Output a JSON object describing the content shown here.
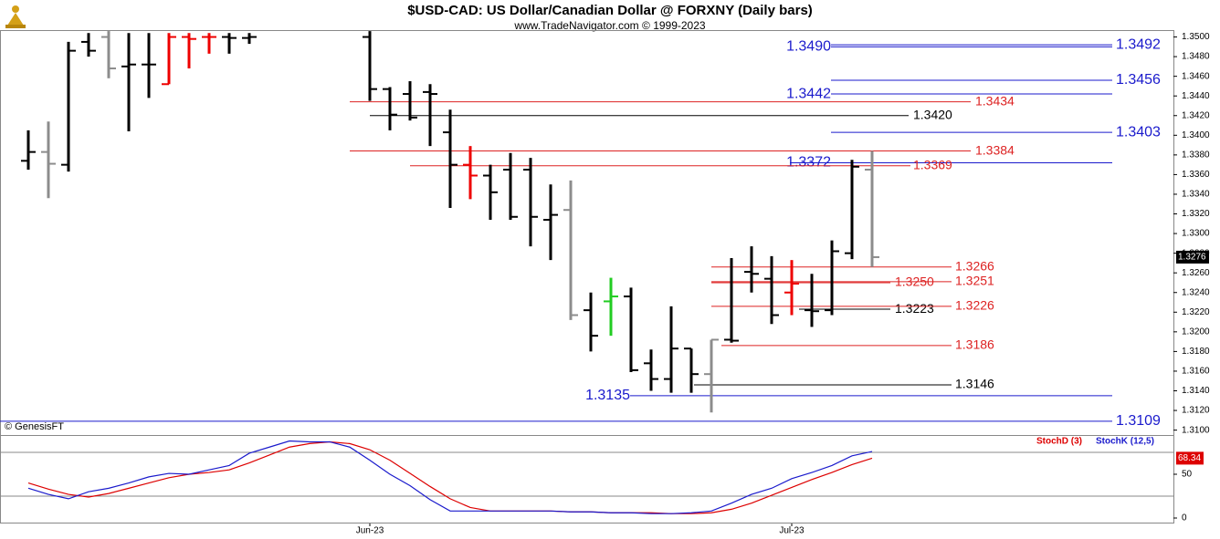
{
  "chart_data": [
    {
      "type": "ohlc",
      "title": "$USD-CAD:  US Dollar/Canadian Dollar @ FORXNY  (Daily bars)",
      "subtitle": "www.TradeNavigator.com © 1999-2023",
      "source": "© GenesisFT",
      "ylim": [
        1.3095,
        1.3507
      ],
      "yticks": [
        {
          "value": 1.31,
          "label": "1.3100"
        },
        {
          "value": 1.312,
          "label": "1.3120"
        },
        {
          "value": 1.314,
          "label": "1.3140"
        },
        {
          "value": 1.316,
          "label": "1.3160"
        },
        {
          "value": 1.318,
          "label": "1.3180"
        },
        {
          "value": 1.32,
          "label": "1.3200"
        },
        {
          "value": 1.322,
          "label": "1.3220"
        },
        {
          "value": 1.324,
          "label": "1.3240"
        },
        {
          "value": 1.326,
          "label": "1.3260"
        },
        {
          "value": 1.328,
          "label": "1.3280"
        },
        {
          "value": 1.33,
          "label": "1.3300"
        },
        {
          "value": 1.332,
          "label": "1.3320"
        },
        {
          "value": 1.334,
          "label": "1.3340"
        },
        {
          "value": 1.336,
          "label": "1.3360"
        },
        {
          "value": 1.338,
          "label": "1.3380"
        },
        {
          "value": 1.34,
          "label": "1.3400"
        },
        {
          "value": 1.342,
          "label": "1.3420"
        },
        {
          "value": 1.344,
          "label": "1.3440"
        },
        {
          "value": 1.346,
          "label": "1.3460"
        },
        {
          "value": 1.348,
          "label": "1.3480"
        },
        {
          "value": 1.35,
          "label": "1.3500"
        }
      ],
      "open": [
        1.3374,
        1.3383,
        1.337,
        1.3495,
        1.35,
        1.347,
        1.3472,
        1.3452,
        1.35,
        1.35,
        1.35,
        1.3499,
        null,
        null,
        null,
        null,
        null,
        1.35,
        1.3447,
        1.3442,
        1.3444,
        1.3403,
        1.337,
        1.3359,
        1.3365,
        1.3365,
        1.3314,
        1.3324,
        1.3222,
        1.3231,
        1.3236,
        1.3168,
        1.3152,
        1.3183,
        1.3157,
        1.3192,
        1.3261,
        1.3254,
        1.324,
        1.3222,
        1.3222,
        1.328,
        1.3365
      ],
      "high": [
        1.3405,
        1.3414,
        1.3495,
        1.3504,
        1.3506,
        1.3504,
        1.3504,
        1.3504,
        1.3504,
        1.3504,
        1.3504,
        1.3504,
        null,
        null,
        null,
        null,
        null,
        1.3506,
        1.3449,
        1.3455,
        1.3452,
        1.3426,
        1.3389,
        1.337,
        1.3382,
        1.3377,
        1.335,
        1.3354,
        1.324,
        1.3255,
        1.3245,
        1.3182,
        1.3226,
        1.3183,
        1.3192,
        1.3275,
        1.3287,
        1.3277,
        1.3273,
        1.3259,
        1.3293,
        1.3375,
        1.3384
      ],
      "low": [
        1.3365,
        1.3336,
        1.3363,
        1.348,
        1.3458,
        1.3404,
        1.3438,
        1.3452,
        1.3468,
        1.3483,
        1.3483,
        1.3493,
        null,
        null,
        null,
        null,
        null,
        1.3435,
        1.3405,
        1.3415,
        1.3389,
        1.3326,
        1.3335,
        1.3314,
        1.3314,
        1.3287,
        1.3273,
        1.3212,
        1.318,
        1.3196,
        1.3159,
        1.314,
        1.3138,
        1.3138,
        1.3118,
        1.3189,
        1.324,
        1.3208,
        1.3217,
        1.3205,
        1.3217,
        1.3274,
        1.3266
      ],
      "close": [
        1.3383,
        1.3371,
        1.3486,
        1.3486,
        1.3468,
        1.3472,
        1.3472,
        1.35,
        1.3498,
        1.35,
        1.3499,
        1.35,
        null,
        null,
        null,
        null,
        null,
        1.3447,
        1.3421,
        1.3418,
        1.3442,
        1.337,
        1.3359,
        1.3342,
        1.3317,
        1.3317,
        1.3319,
        1.3217,
        1.3196,
        1.3236,
        1.3161,
        1.3152,
        1.3183,
        1.3157,
        1.3192,
        1.3191,
        1.3259,
        1.3217,
        1.3249,
        1.3221,
        1.3282,
        1.3368,
        1.3276
      ],
      "colors": [
        "#000000",
        "#8c8c8c",
        "#000000",
        "#000000",
        "#8c8c8c",
        "#000000",
        "#000000",
        "#ee0000",
        "#ee0000",
        "#ee0000",
        "#000000",
        "#000000",
        null,
        null,
        null,
        null,
        null,
        "#000000",
        "#000000",
        "#000000",
        "#000000",
        "#000000",
        "#ee0000",
        "#000000",
        "#000000",
        "#000000",
        "#000000",
        "#8c8c8c",
        "#000000",
        "#22cc22",
        "#000000",
        "#000000",
        "#000000",
        "#000000",
        "#8c8c8c",
        "#000000",
        "#000000",
        "#000000",
        "#ee0000",
        "#000000",
        "#000000",
        "#000000",
        "#8c8c8c"
      ],
      "last_price": 1.3276,
      "levels": [
        {
          "value": 1.349,
          "label": "1.3490",
          "color": "#1a1acc"
        },
        {
          "value": 1.3492,
          "label": "1.3492",
          "color": "#1a1acc"
        },
        {
          "value": 1.3456,
          "label": "1.3456",
          "color": "#1a1acc"
        },
        {
          "value": 1.3442,
          "label": "1.3442",
          "color": "#1a1acc"
        },
        {
          "value": 1.3434,
          "label": "1.3434",
          "color": "#dd2222"
        },
        {
          "value": 1.342,
          "label": "1.3420",
          "color": "#000000"
        },
        {
          "value": 1.3403,
          "label": "1.3403",
          "color": "#1a1acc"
        },
        {
          "value": 1.3384,
          "label": "1.3384",
          "color": "#dd2222"
        },
        {
          "value": 1.3372,
          "label": "1.3372",
          "color": "#1a1acc"
        },
        {
          "value": 1.3369,
          "label": "1.3369",
          "color": "#dd2222"
        },
        {
          "value": 1.3266,
          "label": "1.3266",
          "color": "#dd2222"
        },
        {
          "value": 1.325,
          "label": "1.3250",
          "color": "#dd2222"
        },
        {
          "value": 1.3251,
          "label": "1.3251",
          "color": "#dd2222"
        },
        {
          "value": 1.3223,
          "label": "1.3223",
          "color": "#000000"
        },
        {
          "value": 1.3226,
          "label": "1.3226",
          "color": "#dd2222"
        },
        {
          "value": 1.3186,
          "label": "1.3186",
          "color": "#dd2222"
        },
        {
          "value": 1.3146,
          "label": "1.3146",
          "color": "#000000"
        },
        {
          "value": 1.3135,
          "label": "1.3135",
          "color": "#1a1acc"
        },
        {
          "value": 1.3109,
          "label": "1.3109",
          "color": "#1a1acc"
        }
      ]
    },
    {
      "type": "line",
      "ylim": [
        0,
        100
      ],
      "yticks": [
        0,
        50
      ],
      "bands": [
        75,
        25
      ],
      "xticks": [
        {
          "value": 17,
          "label": "Jun-23"
        },
        {
          "value": 38,
          "label": "Jul-23"
        }
      ],
      "series": [
        {
          "name": "StochD (3)",
          "color": "#dd0000",
          "values": [
            40,
            33,
            27,
            24,
            28,
            34,
            40,
            46,
            50,
            52,
            55,
            63,
            72,
            81,
            85,
            87,
            85,
            78,
            66,
            51,
            36,
            22,
            12,
            8,
            8,
            8,
            8,
            7,
            7,
            6,
            6,
            6,
            5,
            5,
            6,
            10,
            17,
            26,
            35,
            44,
            52,
            61,
            68.34
          ],
          "value_labels": [
            null,
            null,
            null,
            null,
            null,
            null,
            null,
            null,
            null,
            null,
            null,
            null,
            null,
            null,
            null,
            null,
            null,
            null,
            null,
            null,
            null,
            null,
            null,
            null,
            null,
            null,
            null,
            null,
            null,
            null,
            null,
            null,
            null,
            null,
            null,
            null,
            null,
            null,
            null,
            null,
            null,
            null,
            "68.34"
          ]
        },
        {
          "name": "StochK (12,5)",
          "color": "#1a1acc",
          "values": [
            34,
            27,
            22,
            30,
            34,
            40,
            47,
            51,
            50,
            55,
            60,
            74,
            81,
            88,
            87,
            87,
            81,
            66,
            50,
            37,
            21,
            8,
            8,
            8,
            8,
            8,
            8,
            7,
            7,
            6,
            6,
            5,
            5,
            6,
            8,
            17,
            27,
            34,
            45,
            52,
            60,
            71,
            76
          ]
        }
      ]
    }
  ]
}
